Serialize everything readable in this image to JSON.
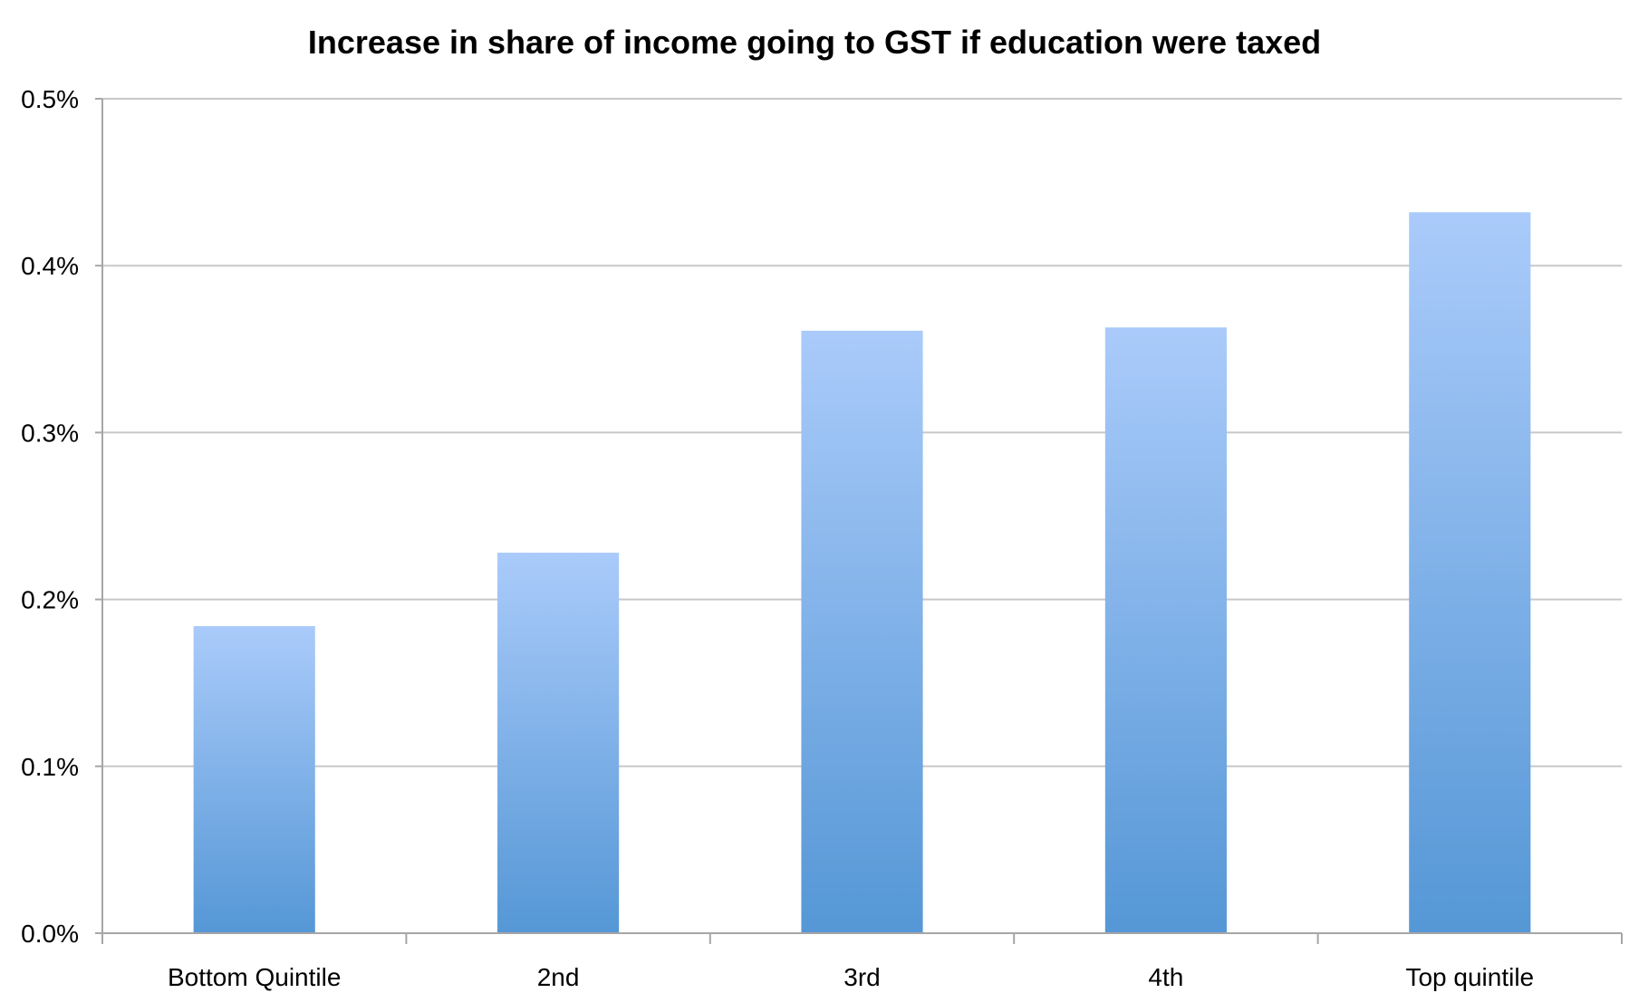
{
  "chart_data": {
    "type": "bar",
    "title": "Increase in share of income going to GST if education were taxed",
    "xlabel": "",
    "ylabel": "",
    "categories": [
      "Bottom Quintile",
      "2nd",
      "3rd",
      "4th",
      "Top quintile"
    ],
    "values": [
      0.184,
      0.228,
      0.361,
      0.363,
      0.432
    ],
    "ylim": [
      0,
      0.5
    ],
    "y_ticks": [
      0.0,
      0.1,
      0.2,
      0.3,
      0.4,
      0.5
    ],
    "y_tick_labels": [
      "0.0%",
      "0.1%",
      "0.2%",
      "0.3%",
      "0.4%",
      "0.5%"
    ],
    "grid": true,
    "legend": "none",
    "colors": {
      "bar_top": "#aacbfa",
      "bar_bottom": "#5597d6",
      "grid": "#c8c8c8",
      "axis": "#a6a6a6"
    }
  }
}
